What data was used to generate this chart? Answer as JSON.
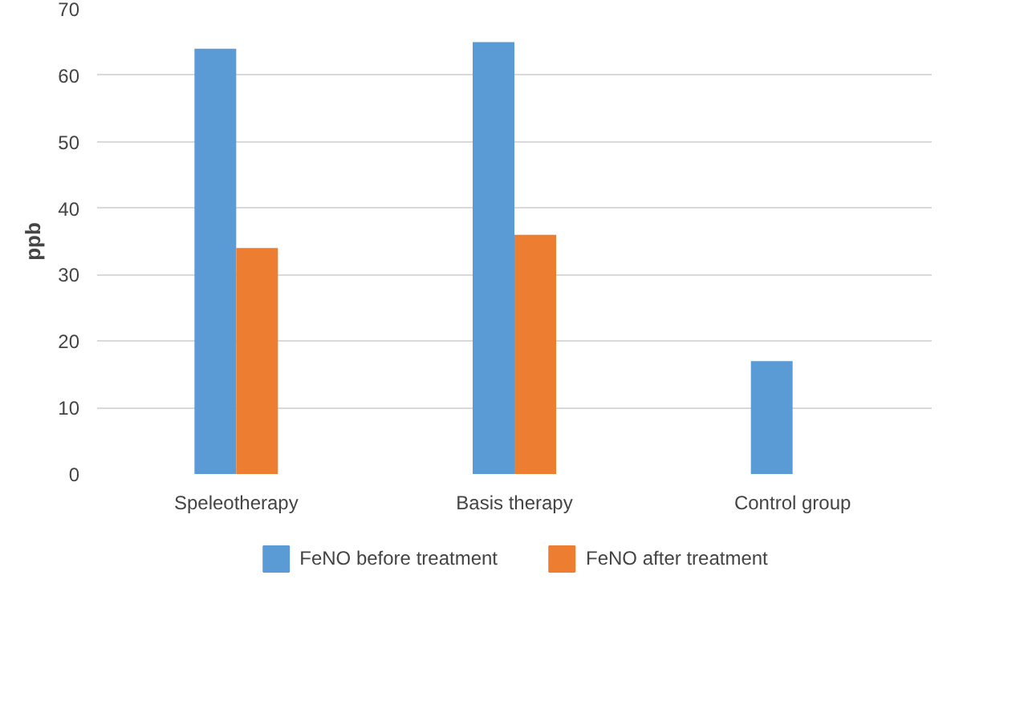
{
  "chart_data": {
    "type": "bar",
    "ylabel": "ppb",
    "categories": [
      "Speleotherapy",
      "Basis therapy",
      "Control group"
    ],
    "series": [
      {
        "name": "FeNO before treatment",
        "color": "#5b9bd5",
        "values": [
          64,
          65,
          17
        ]
      },
      {
        "name": "FeNO after treatment",
        "color": "#ed7d31",
        "values": [
          34,
          36,
          null
        ]
      }
    ],
    "ylim": [
      0,
      70
    ],
    "yticks": [
      0,
      10,
      20,
      30,
      40,
      50,
      60,
      70
    ],
    "grid": "y",
    "legend": "bottom"
  }
}
